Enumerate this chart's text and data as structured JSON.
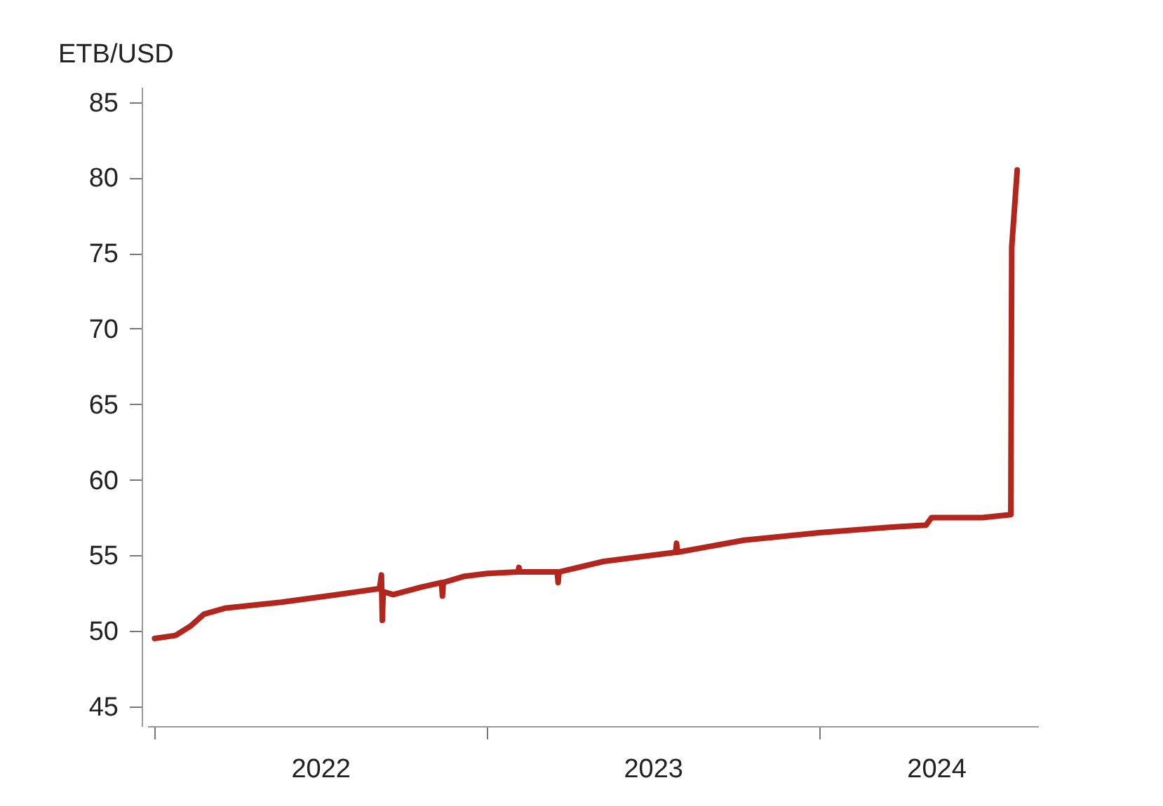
{
  "chart_data": {
    "type": "line",
    "ylabel": "ETB/USD",
    "x": [
      "2022-01-01",
      "2022-01-24",
      "2022-02-09",
      "2022-02-24",
      "2022-03-19",
      "2022-05-20",
      "2022-07-20",
      "2022-09-05",
      "2022-09-07",
      "2022-09-08",
      "2022-09-09",
      "2022-09-20",
      "2022-10-21",
      "2022-11-12",
      "2022-11-13",
      "2022-11-14",
      "2022-12-06",
      "2023-01-01",
      "2023-02-04",
      "2023-02-05",
      "2023-02-06",
      "2023-03-19",
      "2023-03-20",
      "2023-03-21",
      "2023-05-09",
      "2023-07-27",
      "2023-07-28",
      "2023-07-29",
      "2023-10-10",
      "2024-01-01",
      "2024-03-27",
      "2024-04-27",
      "2024-05-03",
      "2024-06-28",
      "2024-07-29",
      "2024-07-30",
      "2024-08-05"
    ],
    "series": [
      {
        "color": "#b3261e",
        "values": [
          49.5,
          49.7,
          50.3,
          51.1,
          51.5,
          51.9,
          52.4,
          52.8,
          53.7,
          50.7,
          52.6,
          52.4,
          52.9,
          53.2,
          52.3,
          53.2,
          53.6,
          53.8,
          53.9,
          54.2,
          53.9,
          53.9,
          53.2,
          53.9,
          54.6,
          55.2,
          55.8,
          55.2,
          56.0,
          56.5,
          56.9,
          57.0,
          57.5,
          57.5,
          57.7,
          75.4,
          80.5
        ]
      }
    ],
    "xlim": [
      "2021-12-24",
      "2024-08-28"
    ],
    "xticks": [
      {
        "value": "2022-01-01",
        "label": null
      },
      {
        "value": "2022-07-02",
        "label": "2022"
      },
      {
        "value": "2023-01-01",
        "label": null
      },
      {
        "value": "2023-07-02",
        "label": "2023"
      },
      {
        "value": "2024-01-01",
        "label": null
      },
      {
        "value": "2024-05-08",
        "label": "2024"
      }
    ],
    "ylim": [
      43.7,
      86
    ],
    "yticks": [
      45,
      50,
      55,
      60,
      65,
      70,
      75,
      80,
      85
    ],
    "grid": false,
    "legend": false,
    "marker": "none",
    "line_style": "solid"
  }
}
